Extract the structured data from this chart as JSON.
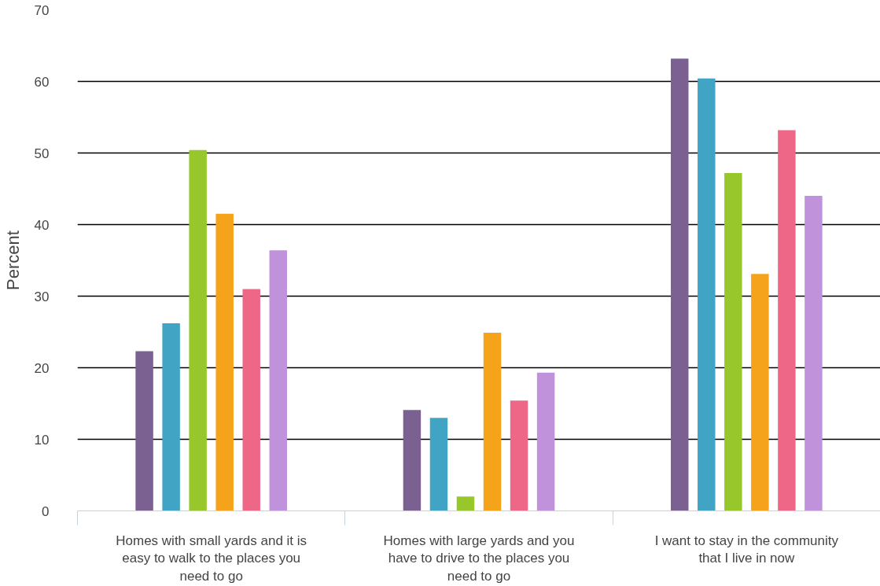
{
  "chart_data": {
    "type": "bar",
    "ylabel": "Percent",
    "categories": [
      "Homes with small yards and it is easy to walk to the places you need to go",
      "Homes with large yards and you have to drive to the places you need to go",
      "I want to stay in the community that I live in now"
    ],
    "series": [
      {
        "color": "#7b6192",
        "values": [
          22.3,
          14.1,
          63.2
        ]
      },
      {
        "color": "#41a4c4",
        "values": [
          26.2,
          13.0,
          60.4
        ]
      },
      {
        "color": "#97c72b",
        "values": [
          50.4,
          2.0,
          47.2
        ]
      },
      {
        "color": "#f5a31b",
        "values": [
          41.5,
          24.9,
          33.1
        ]
      },
      {
        "color": "#ef6787",
        "values": [
          31.0,
          15.4,
          53.2
        ]
      },
      {
        "color": "#bf92db",
        "values": [
          36.4,
          19.3,
          44.0
        ]
      }
    ],
    "ylim": [
      0,
      70
    ],
    "yticks": [
      0,
      10,
      20,
      30,
      40,
      50,
      60,
      70
    ],
    "grid": "y"
  }
}
